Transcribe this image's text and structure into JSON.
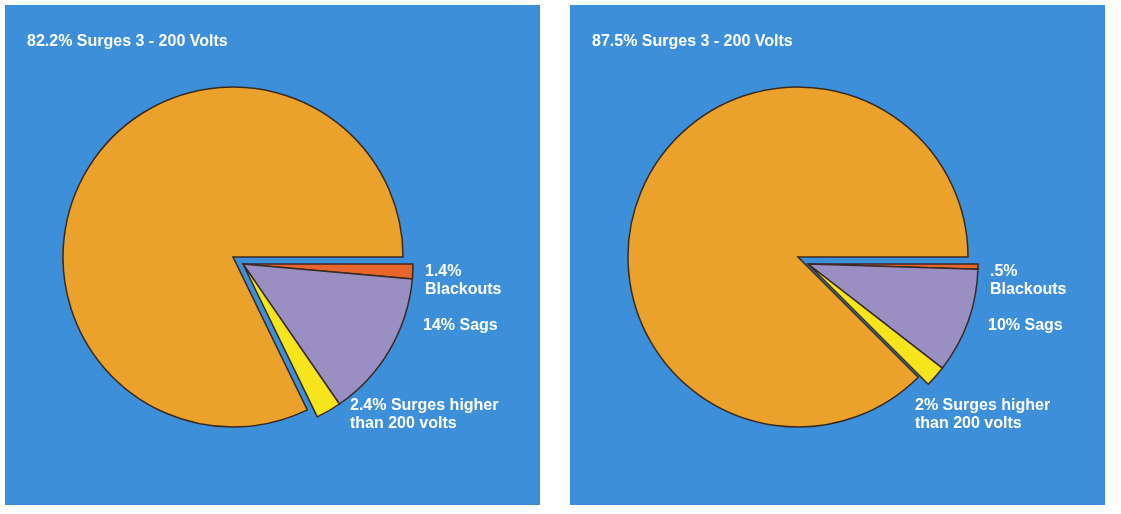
{
  "chart_data": [
    {
      "type": "pie",
      "categories": [
        "Surges 3 - 200 Volts",
        "Blackouts",
        "Sags",
        "Surges higher than 200 volts"
      ],
      "values": [
        82.2,
        1.4,
        14,
        2.4
      ],
      "value_labels": [
        "82.2%",
        "1.4%",
        "14%",
        "2.4%"
      ],
      "colors": [
        "#eba22c",
        "#e8662c",
        "#9a8fc2",
        "#f6e41c"
      ]
    },
    {
      "type": "pie",
      "categories": [
        "Surges 3 - 200 Volts",
        "Blackouts",
        "Sags",
        "Surges higher than 200 volts"
      ],
      "values": [
        87.5,
        0.5,
        10,
        2
      ],
      "value_labels": [
        "87.5%",
        ".5%",
        "10%",
        "2%"
      ],
      "colors": [
        "#eba22c",
        "#e8662c",
        "#9a8fc2",
        "#f6e41c"
      ]
    }
  ]
}
